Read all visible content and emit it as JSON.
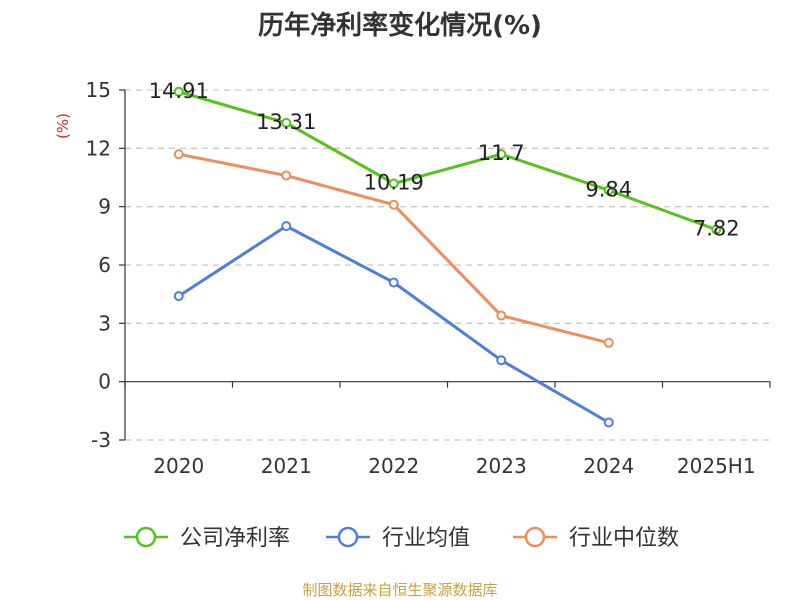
{
  "chart_data": {
    "type": "line",
    "title": "历年净利率变化情况(%)",
    "ylabel": "(%)",
    "categories": [
      "2020",
      "2021",
      "2022",
      "2023",
      "2024",
      "2025H1"
    ],
    "yticks": [
      "15",
      "12",
      "9",
      "6",
      "3",
      "0",
      "-3"
    ],
    "ylim": [
      -3,
      15
    ],
    "grid": true,
    "legend_position": "bottom",
    "series": [
      {
        "name": "公司净利率",
        "color": "#52c41a",
        "values": [
          14.91,
          13.31,
          10.19,
          11.7,
          9.84,
          7.82
        ],
        "labels": [
          "14.91",
          "13.31",
          "10.19",
          "11.7",
          "9.84",
          "7.82"
        ]
      },
      {
        "name": "行业均值",
        "color": "#4a7fdb",
        "values": [
          4.4,
          8.0,
          5.1,
          1.1,
          -2.1,
          null
        ]
      },
      {
        "name": "行业中位数",
        "color": "#f08c5a",
        "values": [
          11.7,
          10.6,
          9.1,
          3.4,
          2.0,
          null
        ]
      }
    ]
  },
  "source": "制图数据来自恒生聚源数据库"
}
